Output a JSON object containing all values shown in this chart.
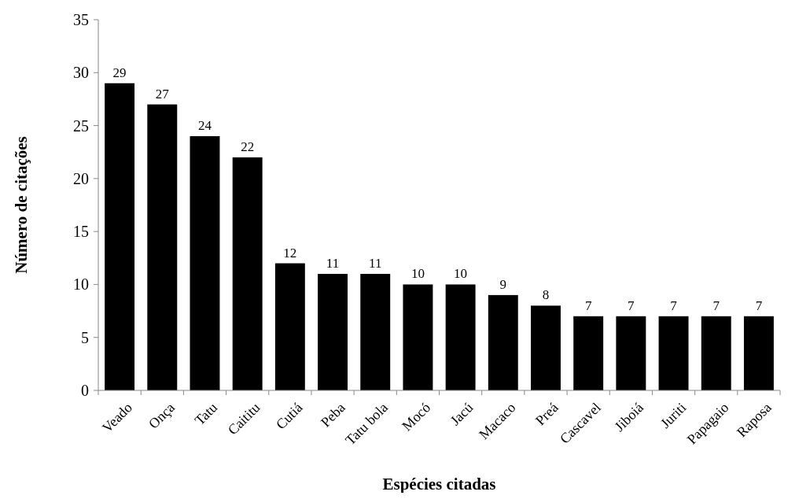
{
  "chart_data": {
    "type": "bar",
    "xlabel": "Espécies citadas",
    "ylabel": "Número de citações",
    "categories": [
      "Veado",
      "Onça",
      "Tatu",
      "Caititu",
      "Cutiá",
      "Peba",
      "Tatu bola",
      "Mocó",
      "Jacú",
      "Macaco",
      "Preá",
      "Cascavel",
      "Jiboiá",
      "Juriti",
      "Papagaio",
      "Raposa"
    ],
    "values": [
      29,
      27,
      24,
      22,
      12,
      11,
      11,
      10,
      10,
      9,
      8,
      7,
      7,
      7,
      7,
      7
    ],
    "color": "#000000",
    "ylim": [
      0,
      35
    ],
    "yticks": [
      0,
      5,
      10,
      15,
      20,
      25,
      30,
      35
    ],
    "grid": false,
    "data_labels": true
  }
}
